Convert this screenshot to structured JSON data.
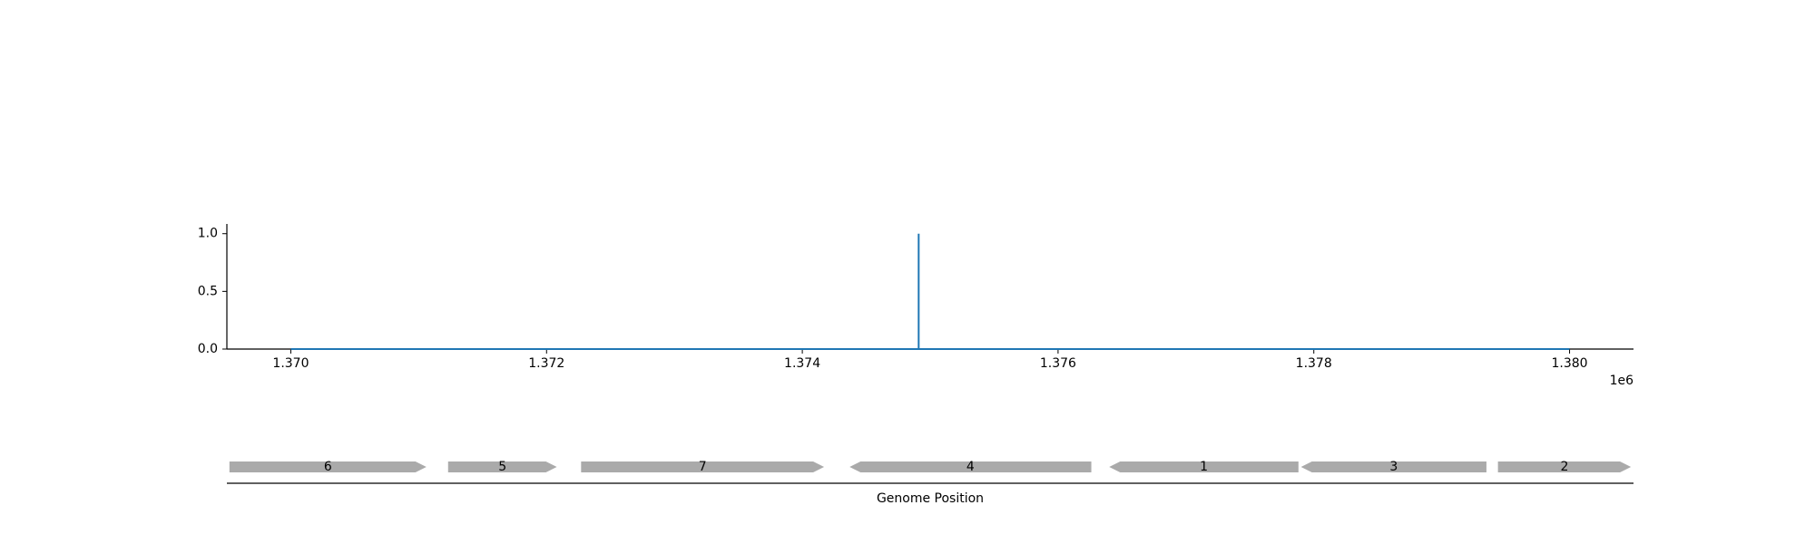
{
  "chart_data": [
    {
      "type": "line",
      "title": "",
      "xlabel": "",
      "ylabel": "",
      "x_offset_label": "1e6",
      "xlim": [
        1369500,
        1380500
      ],
      "ylim": [
        0,
        1.1
      ],
      "xticks": [
        1370000,
        1372000,
        1374000,
        1376000,
        1378000,
        1380000
      ],
      "xtick_labels": [
        "1.370",
        "1.372",
        "1.374",
        "1.376",
        "1.378",
        "1.380"
      ],
      "yticks": [
        0,
        0.5,
        1
      ],
      "ytick_labels": [
        "0.0",
        "0.5",
        "1.0"
      ],
      "grid": false,
      "series": [
        {
          "color": "#1f77b4",
          "x": [
            1370000,
            1374910,
            1374910,
            1374910,
            1380000
          ],
          "y": [
            0,
            0,
            1,
            0,
            0
          ]
        }
      ]
    },
    {
      "type": "gene-track",
      "xlabel": "Genome Position",
      "xlim": [
        1369500,
        1380500
      ],
      "color": "#aaaaaa",
      "genes": [
        {
          "label": "6",
          "start": 1369520,
          "end": 1371060,
          "strand": "+"
        },
        {
          "label": "5",
          "start": 1371230,
          "end": 1372080,
          "strand": "+"
        },
        {
          "label": "7",
          "start": 1372270,
          "end": 1374170,
          "strand": "+"
        },
        {
          "label": "4",
          "start": 1374370,
          "end": 1376260,
          "strand": "-"
        },
        {
          "label": "1",
          "start": 1376400,
          "end": 1377880,
          "strand": "-"
        },
        {
          "label": "3",
          "start": 1377900,
          "end": 1379350,
          "strand": "-"
        },
        {
          "label": "2",
          "start": 1379440,
          "end": 1380480,
          "strand": "+"
        }
      ]
    }
  ]
}
